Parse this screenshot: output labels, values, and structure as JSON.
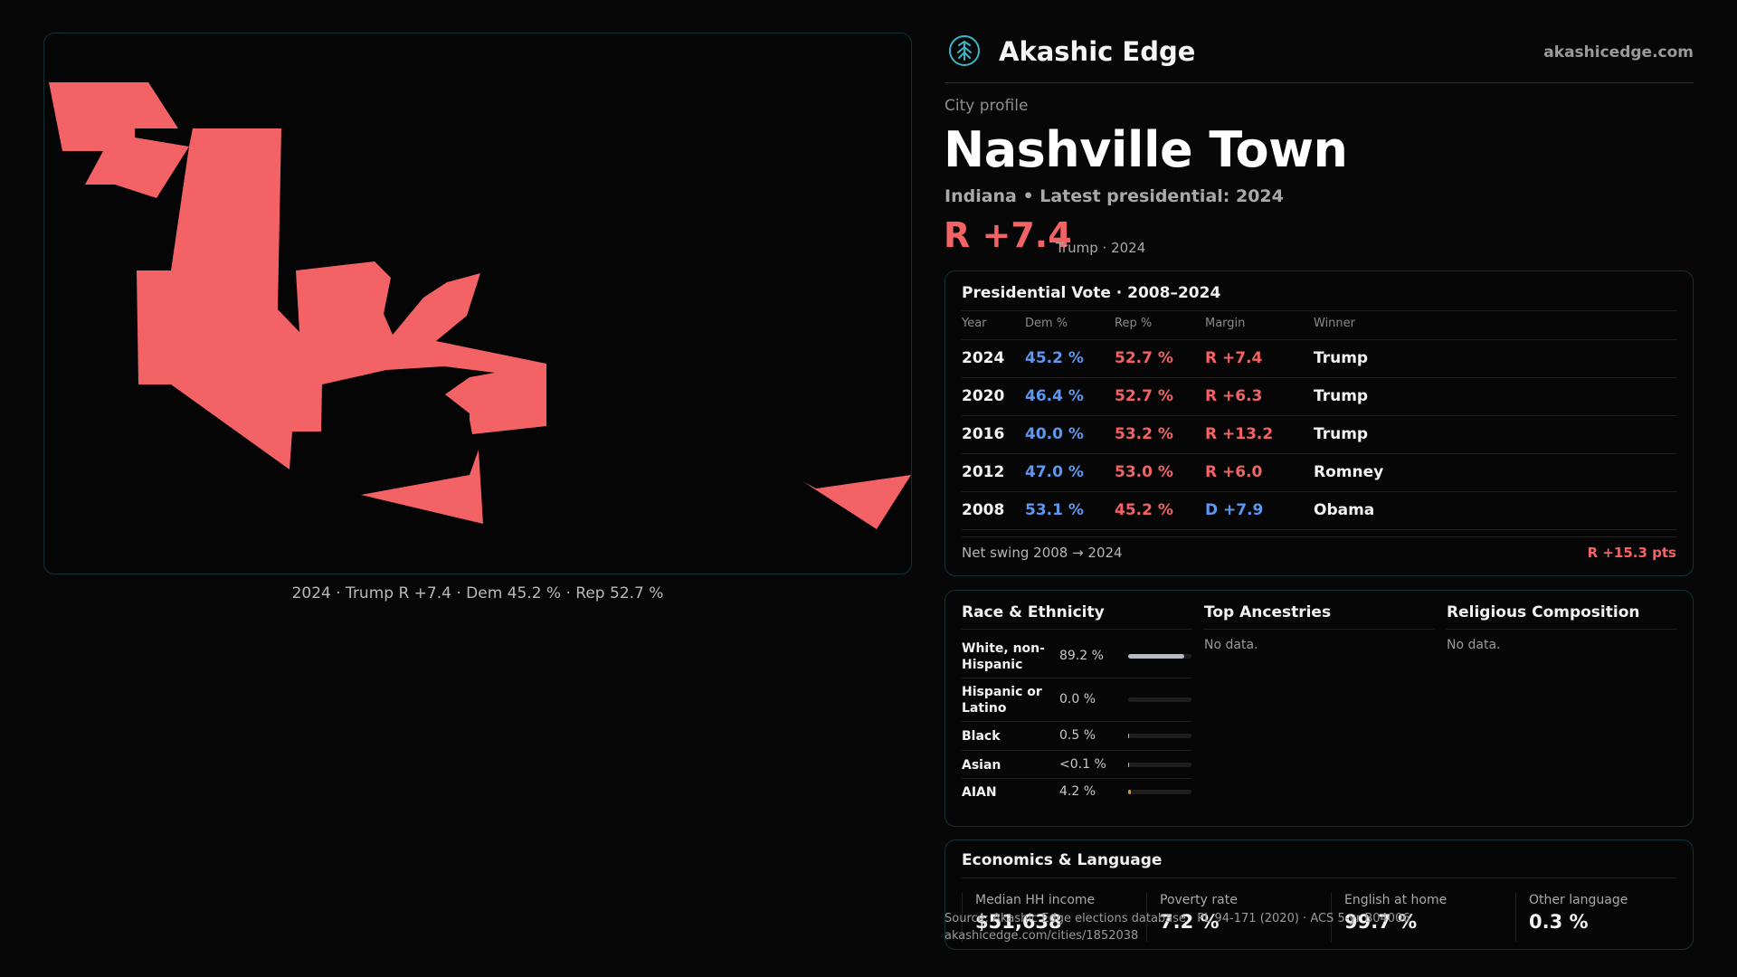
{
  "brand": {
    "name": "Akashic Edge",
    "url": "akashicedge.com",
    "logo_icon": "tree-icon"
  },
  "profile": {
    "kicker": "City profile",
    "city": "Nashville Town",
    "subline": "Indiana • Latest presidential: 2024",
    "margin": "R +7.4",
    "margin_note": "Trump · 2024"
  },
  "map": {
    "caption": "2024 · Trump R +7.4 · Dem 45.2 % · Rep 52.7 %",
    "fill_color": "#f36365"
  },
  "presidential": {
    "title": "Presidential Vote · 2008–2024",
    "headers": {
      "year": "Year",
      "dem": "Dem %",
      "rep": "Rep %",
      "margin": "Margin",
      "winner": "Winner"
    },
    "rows": [
      {
        "year": "2024",
        "dem": "45.2 %",
        "rep": "52.7 %",
        "margin": "R +7.4",
        "party": "R",
        "winner": "Trump"
      },
      {
        "year": "2020",
        "dem": "46.4 %",
        "rep": "52.7 %",
        "margin": "R +6.3",
        "party": "R",
        "winner": "Trump"
      },
      {
        "year": "2016",
        "dem": "40.0 %",
        "rep": "53.2 %",
        "margin": "R +13.2",
        "party": "R",
        "winner": "Trump"
      },
      {
        "year": "2012",
        "dem": "47.0 %",
        "rep": "53.0 %",
        "margin": "R +6.0",
        "party": "R",
        "winner": "Romney"
      },
      {
        "year": "2008",
        "dem": "53.1 %",
        "rep": "45.2 %",
        "margin": "D +7.9",
        "party": "D",
        "winner": "Obama"
      }
    ],
    "swing_label": "Net swing 2008 → 2024",
    "swing_value": "R +15.3 pts"
  },
  "race": {
    "title": "Race & Ethnicity",
    "rows": [
      {
        "label": "White, non-Hispanic",
        "value": "89.2 %",
        "share": 89.2,
        "color": "#b7bcc2"
      },
      {
        "label": "Hispanic or Latino",
        "value": "0.0 %",
        "share": 0.0,
        "color": "#b7bcc2"
      },
      {
        "label": "Black",
        "value": "0.5 %",
        "share": 0.5,
        "color": "#b7bcc2"
      },
      {
        "label": "Asian",
        "value": "<0.1 %",
        "share": 0.05,
        "color": "#b7bcc2"
      },
      {
        "label": "AIAN",
        "value": "4.2 %",
        "share": 4.2,
        "color": "#e8862f"
      }
    ]
  },
  "ancestries": {
    "title": "Top Ancestries",
    "empty": "No data."
  },
  "religion": {
    "title": "Religious Composition",
    "empty": "No data."
  },
  "economics": {
    "title": "Economics & Language",
    "stats": [
      {
        "label": "Median HH income",
        "value": "$51,638"
      },
      {
        "label": "Poverty rate",
        "value": "7.2 %"
      },
      {
        "label": "English at home",
        "value": "99.7 %"
      },
      {
        "label": "Other language",
        "value": "0.3 %"
      }
    ]
  },
  "source": {
    "line1": "Source: Akashic Edge elections database · PL 94-171 (2020) · ACS 5-yr B04006",
    "line2": "akashicedge.com/cities/1852038"
  },
  "colors": {
    "dem": "#5e97f0",
    "rep": "#f36365",
    "accent": "#133237"
  }
}
